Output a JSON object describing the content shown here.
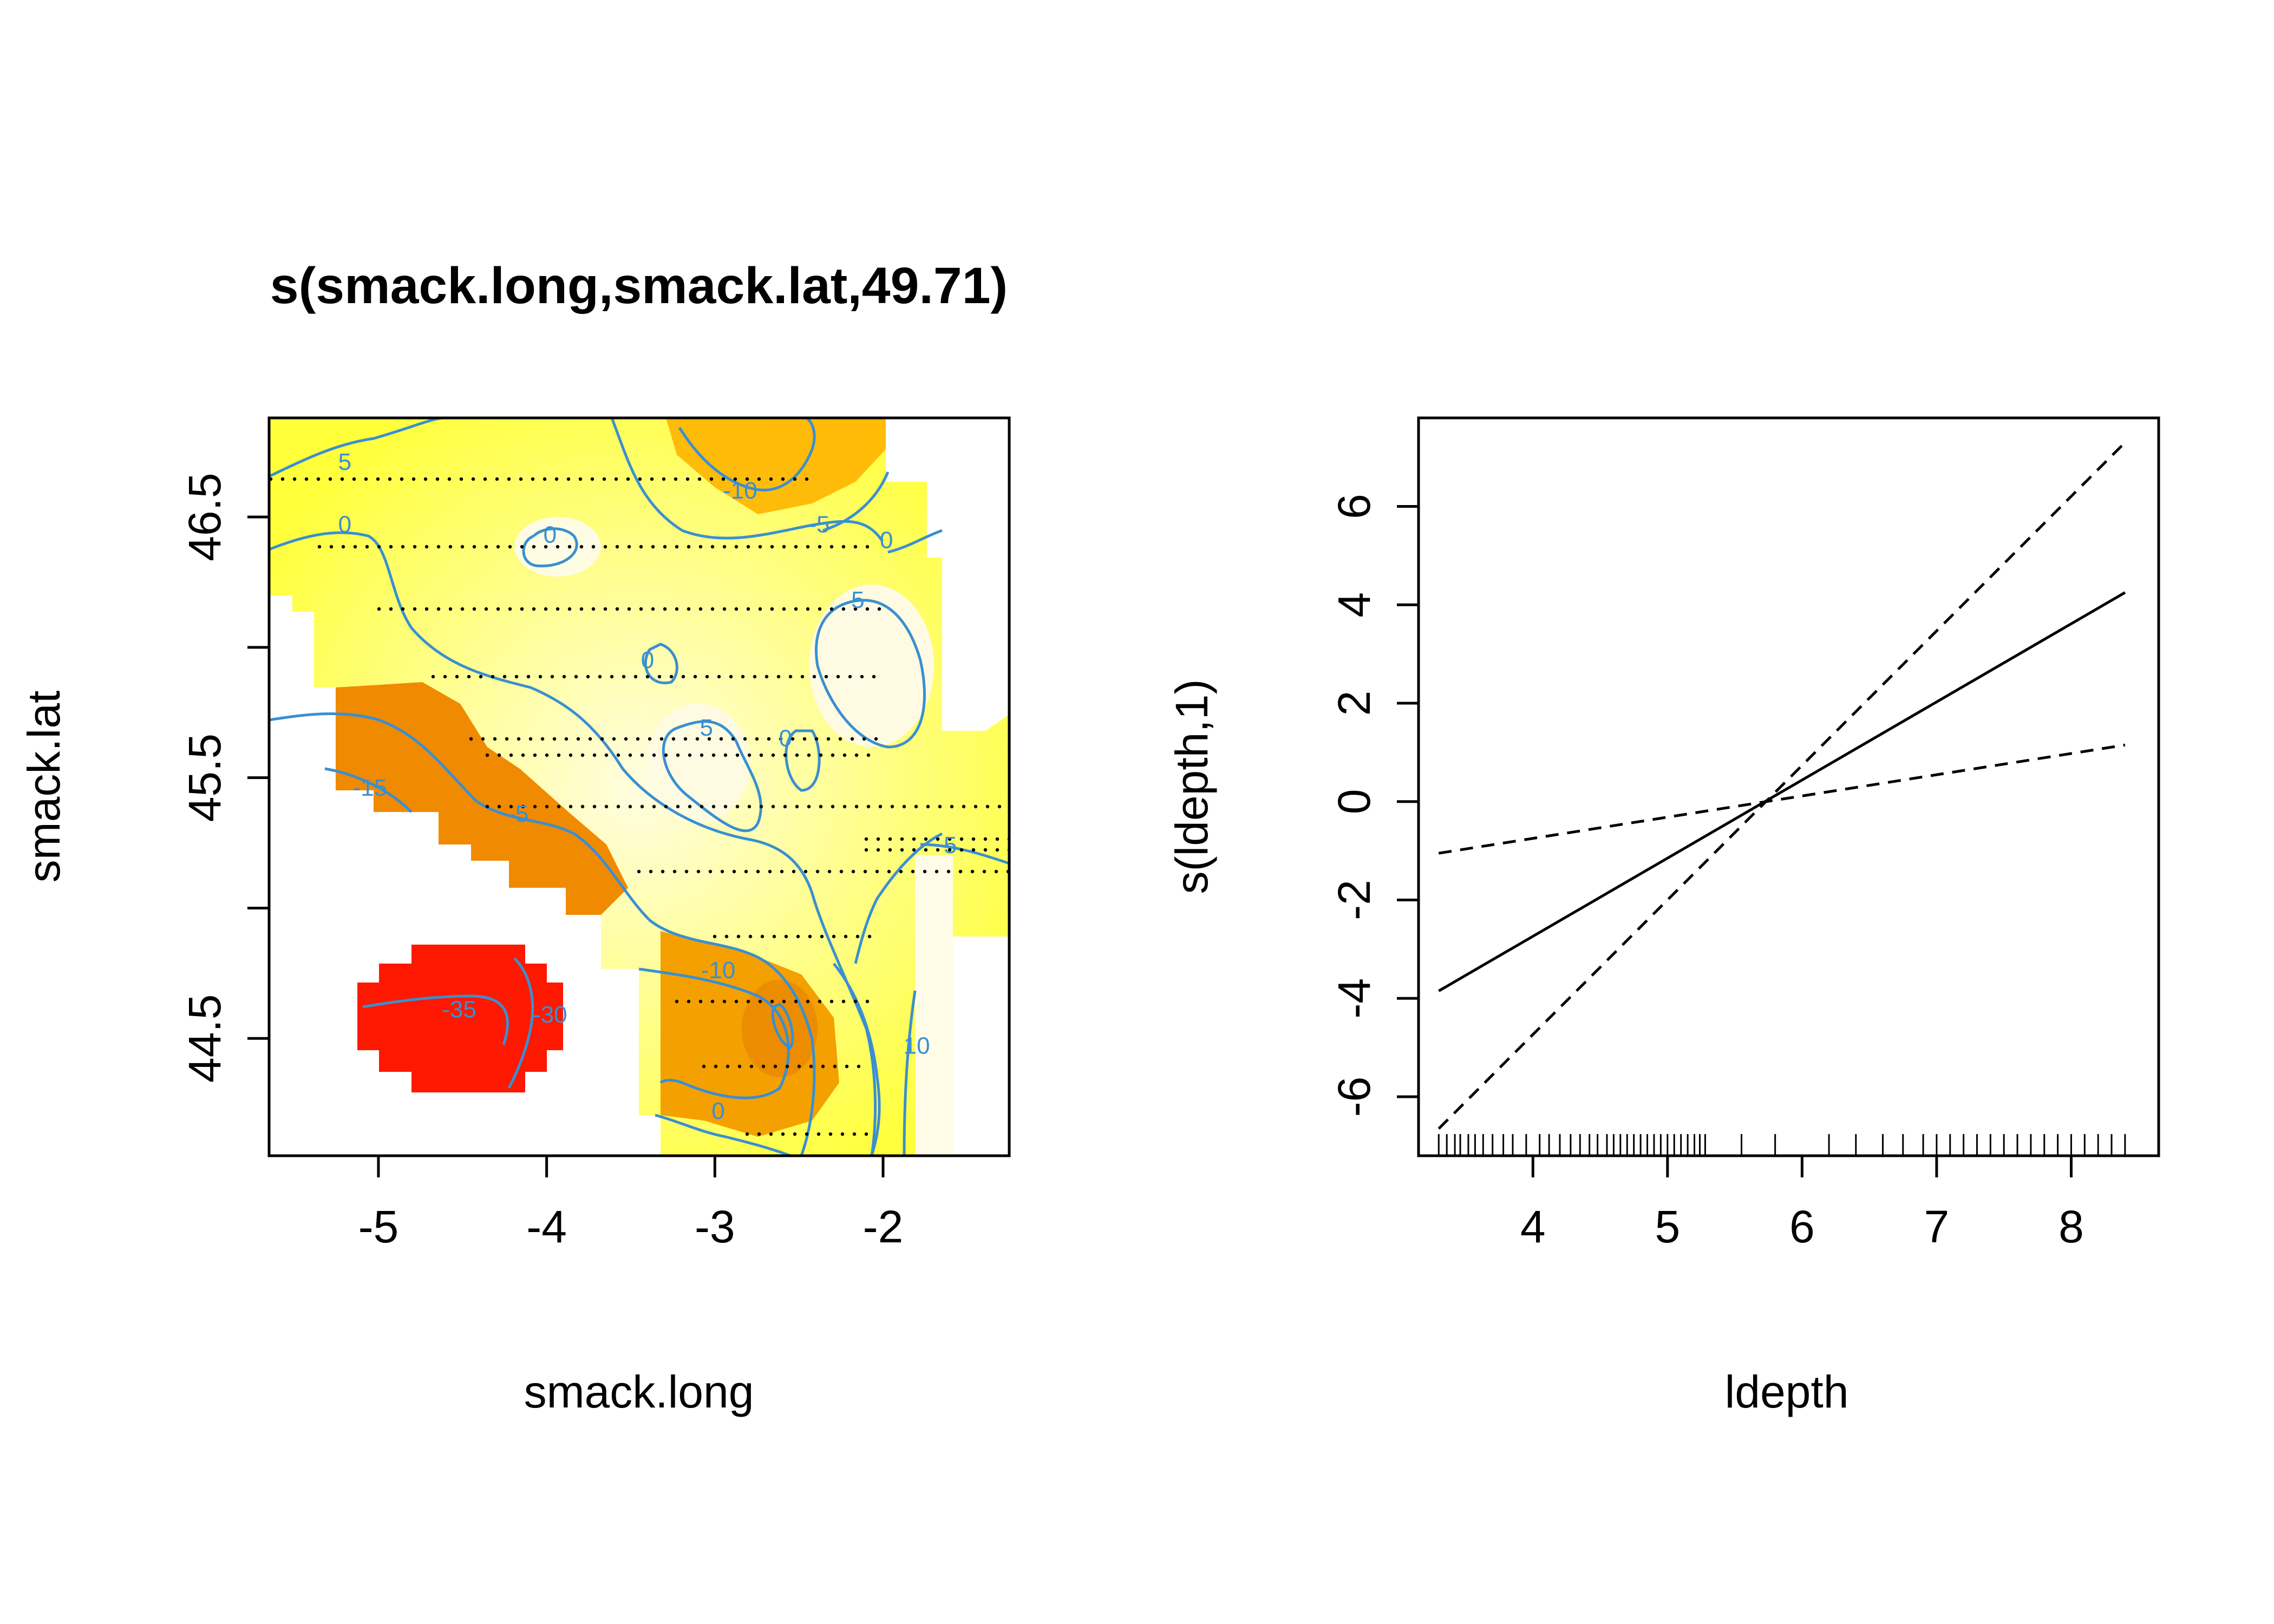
{
  "chart_data": [
    {
      "type": "heatmap",
      "title": "s(smack.long,smack.lat,49.71)",
      "xlabel": "smack.long",
      "ylabel": "smack.lat",
      "xlim": [
        -5.65,
        -1.25
      ],
      "ylim": [
        44.05,
        46.88
      ],
      "x_ticks": [
        -5,
        -4,
        -3,
        -2
      ],
      "y_ticks": [
        44.5,
        45.0,
        45.5,
        46.0,
        46.5
      ],
      "y_tick_labels": [
        "44.5",
        "",
        "45.5",
        "",
        "46.5"
      ],
      "colors": {
        "low": "#ff0000",
        "mid": "#ffa500",
        "high": "#ffff00",
        "highest": "#fffce8",
        "contour": "#3a8fd1"
      },
      "contour_labels": [
        {
          "text": "5",
          "x": -5.2,
          "y": 46.71
        },
        {
          "text": "0",
          "x": -5.2,
          "y": 46.47
        },
        {
          "text": "0",
          "x": -3.98,
          "y": 46.43
        },
        {
          "text": "-10",
          "x": -2.85,
          "y": 46.6
        },
        {
          "text": "-5",
          "x": -2.38,
          "y": 46.47
        },
        {
          "text": "0",
          "x": -1.98,
          "y": 46.41
        },
        {
          "text": "5",
          "x": -2.15,
          "y": 46.18
        },
        {
          "text": "0",
          "x": -3.4,
          "y": 45.95
        },
        {
          "text": "5",
          "x": -3.05,
          "y": 45.69
        },
        {
          "text": "0",
          "x": -2.58,
          "y": 45.65
        },
        {
          "text": "-15",
          "x": -5.05,
          "y": 45.46
        },
        {
          "text": "-5",
          "x": -4.17,
          "y": 45.36
        },
        {
          "text": "5",
          "x": -1.6,
          "y": 45.24
        },
        {
          "text": "-10",
          "x": -2.98,
          "y": 44.76
        },
        {
          "text": "-35",
          "x": -4.52,
          "y": 44.61
        },
        {
          "text": "-30",
          "x": -3.98,
          "y": 44.59
        },
        {
          "text": "10",
          "x": -1.8,
          "y": 44.47
        },
        {
          "text": "0",
          "x": -2.98,
          "y": 44.22
        }
      ]
    },
    {
      "type": "line",
      "xlabel": "ldepth",
      "ylabel": "s(ldepth,1)",
      "xlim": [
        3.15,
        8.65
      ],
      "ylim": [
        -7.2,
        7.8
      ],
      "x_ticks": [
        4,
        5,
        6,
        7,
        8
      ],
      "y_ticks": [
        -6,
        -4,
        -2,
        0,
        2,
        4,
        6
      ],
      "series": [
        {
          "style": "solid",
          "x": [
            3.3,
            8.4
          ],
          "y": [
            -3.85,
            4.25
          ]
        },
        {
          "style": "dashed",
          "x": [
            3.3,
            8.4
          ],
          "y": [
            -6.65,
            7.3
          ]
        },
        {
          "style": "dashed",
          "x": [
            3.3,
            8.4
          ],
          "y": [
            -1.05,
            1.15
          ]
        }
      ],
      "rug_x": [
        3.3,
        3.36,
        3.42,
        3.46,
        3.52,
        3.57,
        3.63,
        3.7,
        3.78,
        3.85,
        3.95,
        4.05,
        4.12,
        4.2,
        4.28,
        4.35,
        4.42,
        4.48,
        4.55,
        4.6,
        4.65,
        4.7,
        4.75,
        4.8,
        4.85,
        4.9,
        4.95,
        5.0,
        5.05,
        5.1,
        5.15,
        5.2,
        5.24,
        5.28,
        5.55,
        5.8,
        6.2,
        6.4,
        6.6,
        6.75,
        6.9,
        7.0,
        7.1,
        7.2,
        7.3,
        7.4,
        7.5,
        7.6,
        7.7,
        7.8,
        7.9,
        8.0,
        8.1,
        8.2,
        8.3,
        8.4
      ]
    }
  ]
}
